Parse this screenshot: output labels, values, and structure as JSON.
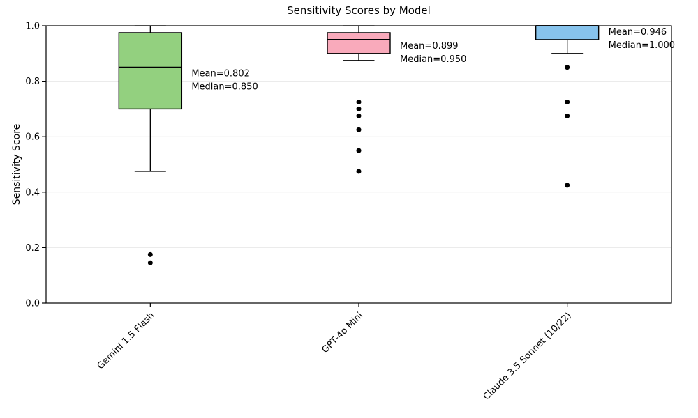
{
  "chart_data": {
    "type": "boxplot",
    "title": "Sensitivity Scores by Model",
    "ylabel": "Sensitivity Score",
    "xlabel": "",
    "ylim": [
      0.0,
      1.0
    ],
    "grid": "horizontal-light",
    "legend": "none",
    "yticks": [
      {
        "label": "0.0",
        "value": 0.0
      },
      {
        "label": "0.2",
        "value": 0.2
      },
      {
        "label": "0.4",
        "value": 0.4
      },
      {
        "label": "0.6",
        "value": 0.6
      },
      {
        "label": "0.8",
        "value": 0.8
      },
      {
        "label": "1.0",
        "value": 1.0
      }
    ],
    "categories": [
      "Gemini 1.5 Flash",
      "GPT-4o Mini",
      "Claude 3.5 Sonnet (10/22)"
    ],
    "series": [
      {
        "model": "Gemini 1.5 Flash",
        "box_color": "#93d07f",
        "whisker_low": 0.475,
        "q1": 0.7,
        "median": 0.85,
        "q3": 0.975,
        "whisker_high": 1.0,
        "mean": 0.802,
        "outliers": [
          0.175,
          0.145
        ],
        "annotation": [
          "Mean=0.802",
          "Median=0.850"
        ]
      },
      {
        "model": "GPT-4o Mini",
        "box_color": "#f9aabb",
        "whisker_low": 0.875,
        "q1": 0.9,
        "median": 0.95,
        "q3": 0.975,
        "whisker_high": 1.0,
        "mean": 0.899,
        "outliers": [
          0.725,
          0.7,
          0.675,
          0.625,
          0.55,
          0.475
        ],
        "annotation": [
          "Mean=0.899",
          "Median=0.950"
        ]
      },
      {
        "model": "Claude 3.5 Sonnet (10/22)",
        "box_color": "#87c3ec",
        "whisker_low": 0.9,
        "q1": 0.95,
        "median": 1.0,
        "q3": 1.0,
        "whisker_high": 1.0,
        "mean": 0.946,
        "outliers": [
          0.85,
          0.725,
          0.675,
          0.425
        ],
        "annotation": [
          "Mean=0.946",
          "Median=1.000"
        ]
      }
    ],
    "colors": {
      "edge": "#000000",
      "gridline": "#e8e8e8",
      "outlier": "#000000",
      "background": "#ffffff"
    }
  }
}
